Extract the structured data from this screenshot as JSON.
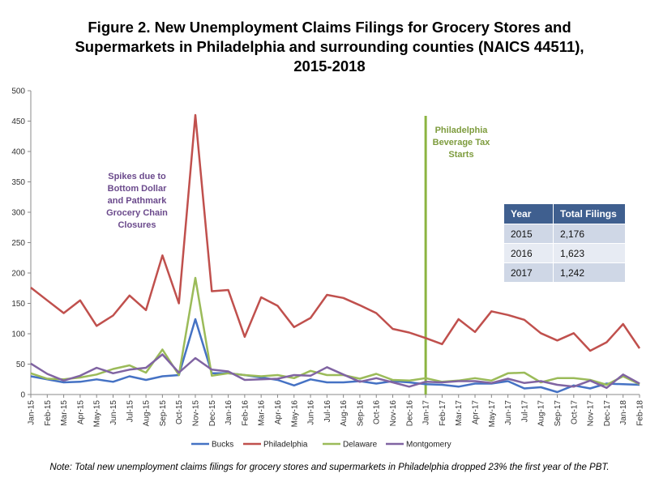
{
  "title": {
    "line1": "Figure 2. New Unemployment Claims Filings for Grocery Stores and",
    "line2": "Supermarkets in Philadelphia and surrounding counties (NAICS 44511),",
    "line3": "2015-2018"
  },
  "chart_data": {
    "type": "line",
    "title": "Figure 2. New Unemployment Claims Filings for Grocery Stores and Supermarkets in Philadelphia and surrounding counties (NAICS 44511), 2015-2018",
    "xlabel": "",
    "ylabel": "",
    "ylim": [
      0,
      500
    ],
    "yticks": [
      "0",
      "50",
      "100",
      "150",
      "200",
      "250",
      "300",
      "350",
      "400",
      "450",
      "500"
    ],
    "grid": false,
    "legend": "bottom",
    "categories": [
      "Jan-15",
      "Feb-15",
      "Mar-15",
      "Apr-15",
      "May-15",
      "Jun-15",
      "Jul-15",
      "Aug-15",
      "Sep-15",
      "Oct-15",
      "Nov-15",
      "Dec-15",
      "Jan-16",
      "Feb-16",
      "Mar-16",
      "Apr-16",
      "May-16",
      "Jun-16",
      "Jul-16",
      "Aug-16",
      "Sep-16",
      "Oct-16",
      "Nov-16",
      "Dec-16",
      "Jan-17",
      "Feb-17",
      "Mar-17",
      "Apr-17",
      "May-17",
      "Jun-17",
      "Jul-17",
      "Aug-17",
      "Sep-17",
      "Oct-17",
      "Nov-17",
      "Dec-17",
      "Jan-18",
      "Feb-18"
    ],
    "series": [
      {
        "name": "Bucks",
        "color": "#4572c4",
        "values": [
          30,
          25,
          20,
          21,
          25,
          21,
          30,
          24,
          30,
          32,
          124,
          35,
          35,
          32,
          28,
          24,
          15,
          25,
          20,
          20,
          22,
          18,
          22,
          20,
          17,
          16,
          13,
          18,
          18,
          22,
          10,
          12,
          4,
          15,
          10,
          18,
          17,
          16
        ]
      },
      {
        "name": "Philadelphia",
        "color": "#c0504d",
        "values": [
          176,
          155,
          134,
          155,
          113,
          130,
          163,
          139,
          229,
          150,
          460,
          170,
          172,
          95,
          160,
          146,
          111,
          126,
          164,
          159,
          147,
          134,
          108,
          102,
          93,
          83,
          124,
          103,
          137,
          131,
          123,
          101,
          89,
          101,
          72,
          86,
          116,
          76
        ]
      },
      {
        "name": "Delaware",
        "color": "#9bbb59",
        "values": [
          35,
          26,
          25,
          28,
          33,
          42,
          48,
          36,
          74,
          32,
          192,
          31,
          35,
          32,
          30,
          32,
          27,
          39,
          32,
          32,
          26,
          34,
          24,
          23,
          27,
          21,
          23,
          27,
          23,
          35,
          36,
          20,
          27,
          27,
          24,
          16,
          30,
          17
        ]
      },
      {
        "name": "Montgomery",
        "color": "#8064a2",
        "values": [
          51,
          34,
          23,
          31,
          44,
          35,
          41,
          44,
          66,
          36,
          60,
          41,
          38,
          24,
          25,
          26,
          32,
          31,
          45,
          33,
          21,
          27,
          20,
          13,
          21,
          20,
          22,
          22,
          19,
          26,
          19,
          22,
          16,
          13,
          23,
          11,
          33,
          18
        ]
      }
    ],
    "annotations": [
      {
        "text_lines": [
          "Spikes due to",
          "Bottom Dollar",
          "and Pathmark",
          "Grocery Chain",
          "Closures"
        ],
        "color": "#6b4a8c"
      },
      {
        "text_lines": [
          "Philadelphia",
          "Beverage Tax",
          "Starts"
        ],
        "color": "#7e9c3e",
        "at_category": "Jan-17",
        "line_color": "#8cb442"
      }
    ]
  },
  "table": {
    "headers": [
      "Year",
      "Total Filings"
    ],
    "rows": [
      [
        "2015",
        "2,176"
      ],
      [
        "2016",
        "1,623"
      ],
      [
        "2017",
        "1,242"
      ]
    ]
  },
  "note": "Note: Total new unemployment claims filings for grocery stores and supermarkets in Philadelphia dropped 23% the first year of the PBT."
}
